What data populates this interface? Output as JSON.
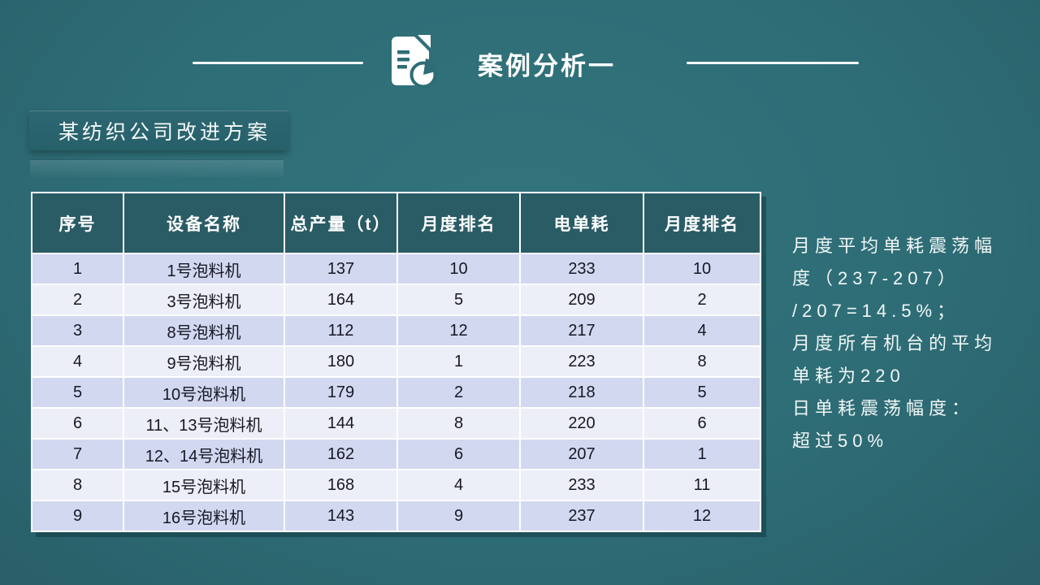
{
  "slide": {
    "title": "案例分析一",
    "subtitle": "某纺织公司改进方案"
  },
  "table": {
    "headers": [
      "序号",
      "设备名称",
      "总产量（t）",
      "月度排名",
      "电单耗",
      "月度排名"
    ],
    "rows": [
      [
        "1",
        "1号泡料机",
        "137",
        "10",
        "233",
        "10"
      ],
      [
        "2",
        "3号泡料机",
        "164",
        "5",
        "209",
        "2"
      ],
      [
        "3",
        "8号泡料机",
        "112",
        "12",
        "217",
        "4"
      ],
      [
        "4",
        "9号泡料机",
        "180",
        "1",
        "223",
        "8"
      ],
      [
        "5",
        "10号泡料机",
        "179",
        "2",
        "218",
        "5"
      ],
      [
        "6",
        "11、13号泡料机",
        "144",
        "8",
        "220",
        "6"
      ],
      [
        "7",
        "12、14号泡料机",
        "162",
        "6",
        "207",
        "1"
      ],
      [
        "8",
        "15号泡料机",
        "168",
        "4",
        "233",
        "11"
      ],
      [
        "9",
        "16号泡料机",
        "143",
        "9",
        "237",
        "12"
      ]
    ]
  },
  "notes": {
    "lines": [
      "月度平均单耗震荡幅",
      "度（237-207）",
      "/207=14.5%；",
      "月度所有机台的平均",
      "单耗为220",
      "日单耗震荡幅度：",
      "超过50%"
    ]
  },
  "icons": {
    "title_icon": "document-chart-icon"
  },
  "colors": {
    "background": "#2E6D76",
    "table_header_bg": "#2A5C66",
    "row_odd": "#D2D8F0",
    "row_even": "#ECEEF8",
    "subtitle_bg": "#27606A",
    "text_light": "#FFFFFF",
    "cell_text": "#181824"
  }
}
